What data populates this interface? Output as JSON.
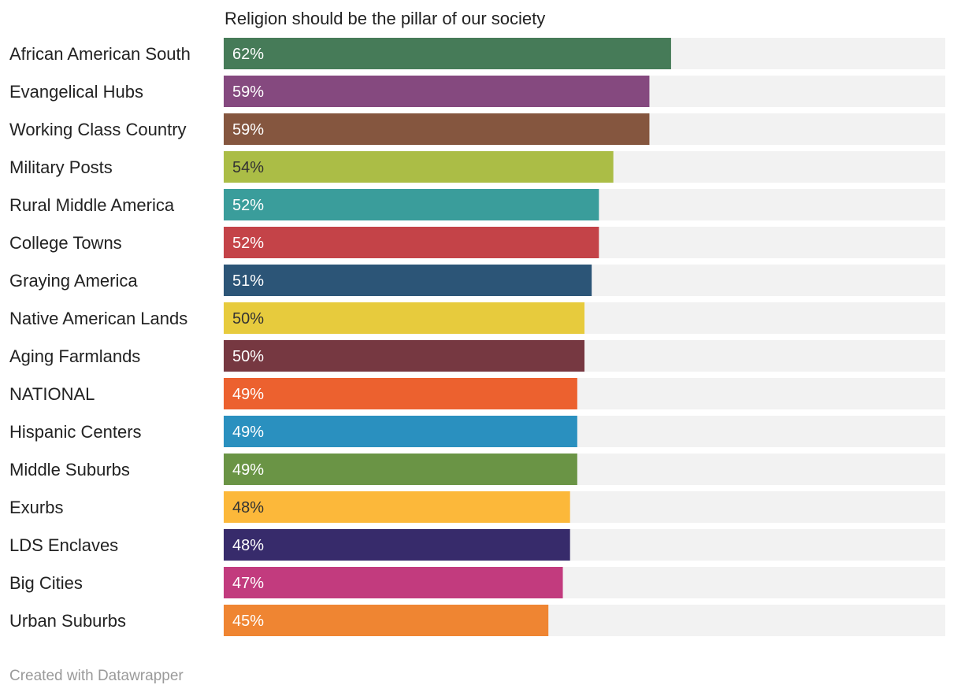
{
  "chart_data": {
    "type": "bar",
    "orientation": "horizontal",
    "title": "Religion should be the pillar of our society",
    "xlim": [
      0,
      100
    ],
    "value_suffix": "%",
    "categories": [
      "African American South",
      "Evangelical Hubs",
      "Working Class Country",
      "Military Posts",
      "Rural Middle America",
      "College Towns",
      "Graying America",
      "Native American Lands",
      "Aging Farmlands",
      "NATIONAL",
      "Hispanic Centers",
      "Middle Suburbs",
      "Exurbs",
      "LDS Enclaves",
      "Big Cities",
      "Urban Suburbs"
    ],
    "values": [
      62,
      59,
      59,
      54,
      52,
      52,
      51,
      50,
      50,
      49,
      49,
      49,
      48,
      48,
      47,
      45
    ],
    "colors": [
      "#467b58",
      "#85497f",
      "#85563f",
      "#abbd46",
      "#3a9d9b",
      "#c44348",
      "#2c5577",
      "#e7cb3d",
      "#763841",
      "#ec612f",
      "#2a90bf",
      "#6a9445",
      "#fcb83a",
      "#372b6b",
      "#c23b7e",
      "#ef8532"
    ],
    "label_colors": [
      "#ffffff",
      "#ffffff",
      "#ffffff",
      "#333333",
      "#ffffff",
      "#ffffff",
      "#ffffff",
      "#333333",
      "#ffffff",
      "#ffffff",
      "#ffffff",
      "#ffffff",
      "#333333",
      "#ffffff",
      "#ffffff",
      "#ffffff"
    ],
    "track_color": "#f2f2f2"
  },
  "footer": {
    "credit": "Created with Datawrapper"
  }
}
